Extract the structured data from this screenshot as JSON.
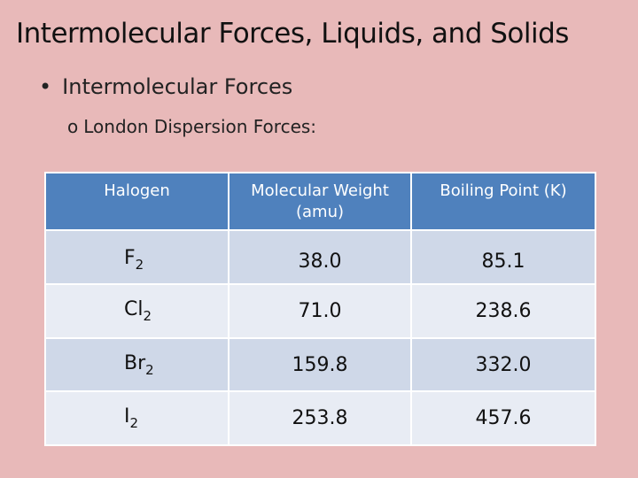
{
  "slide": {
    "title": "Intermolecular Forces, Liquids, and Solids",
    "bullet_marker": "•",
    "bullet": "Intermolecular Forces",
    "sub_marker": "o",
    "sub_bullet": "London Dispersion Forces:"
  },
  "table": {
    "headers": [
      "Halogen",
      "Molecular Weight (amu)",
      "Boiling Point (K)"
    ],
    "rows": [
      {
        "element": "F",
        "subscript": "2",
        "mw": "38.0",
        "bp": "85.1"
      },
      {
        "element": "Cl",
        "subscript": "2",
        "mw": "71.0",
        "bp": "238.6"
      },
      {
        "element": "Br",
        "subscript": "2",
        "mw": "159.8",
        "bp": "332.0"
      },
      {
        "element": "I",
        "subscript": "2",
        "mw": "253.8",
        "bp": "457.6"
      }
    ]
  },
  "colors": {
    "background": "#e8b9b9",
    "header": "#4f81bd",
    "row_dark": "#cfd8e8",
    "row_light": "#e8ecf4"
  }
}
